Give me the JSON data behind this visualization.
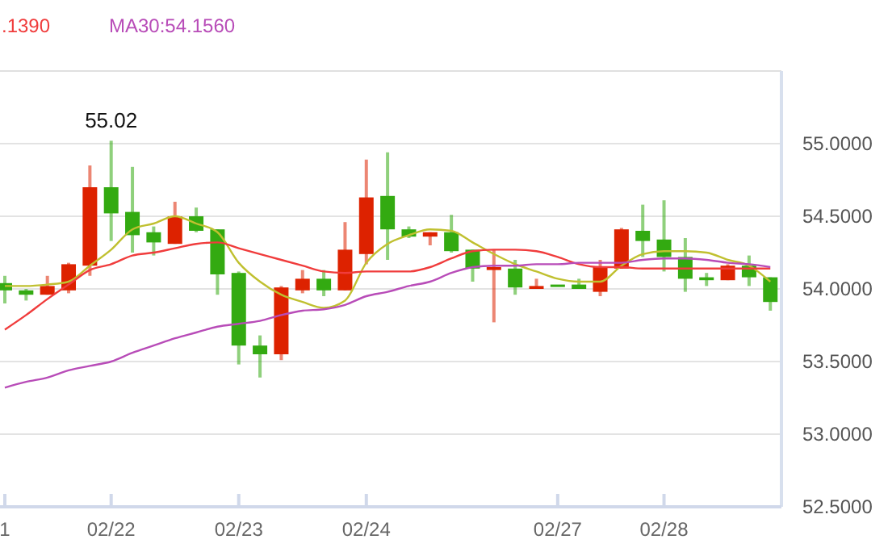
{
  "chart_data": {
    "type": "candlestick",
    "categories": [
      "1",
      null,
      null,
      null,
      null,
      "02/22",
      null,
      null,
      null,
      null,
      null,
      "02/23",
      null,
      null,
      null,
      null,
      null,
      "02/24",
      null,
      null,
      null,
      null,
      null,
      null,
      null,
      null,
      "02/27",
      null,
      null,
      null,
      null,
      "02/28",
      null,
      null,
      null,
      null,
      null
    ],
    "ohlc": [
      [
        54.04,
        54.09,
        53.9,
        53.99
      ],
      [
        53.99,
        54.0,
        53.92,
        53.96
      ],
      [
        53.96,
        54.09,
        53.96,
        54.02
      ],
      [
        53.99,
        54.18,
        53.97,
        54.17
      ],
      [
        54.16,
        54.85,
        54.09,
        54.7
      ],
      [
        54.7,
        55.02,
        54.33,
        54.52
      ],
      [
        54.53,
        54.84,
        54.25,
        54.37
      ],
      [
        54.39,
        54.43,
        54.23,
        54.32
      ],
      [
        54.31,
        54.6,
        54.31,
        54.5
      ],
      [
        54.5,
        54.56,
        54.39,
        54.4
      ],
      [
        54.41,
        54.41,
        53.96,
        54.1
      ],
      [
        54.11,
        54.12,
        53.48,
        53.61
      ],
      [
        53.61,
        53.68,
        53.39,
        53.55
      ],
      [
        53.55,
        54.02,
        53.51,
        54.01
      ],
      [
        53.99,
        54.13,
        53.97,
        54.07
      ],
      [
        54.07,
        54.13,
        53.95,
        53.99
      ],
      [
        53.99,
        54.46,
        53.99,
        54.27
      ],
      [
        54.24,
        54.89,
        54.17,
        54.63
      ],
      [
        54.64,
        54.94,
        54.2,
        54.41
      ],
      [
        54.41,
        54.43,
        54.35,
        54.36
      ],
      [
        54.36,
        54.39,
        54.3,
        54.39
      ],
      [
        54.39,
        54.51,
        54.25,
        54.26
      ],
      [
        54.27,
        54.27,
        54.05,
        54.14
      ],
      [
        54.13,
        54.27,
        53.77,
        54.15
      ],
      [
        54.14,
        54.2,
        53.96,
        54.01
      ],
      [
        54.0,
        54.07,
        54.0,
        54.02
      ],
      [
        54.03,
        54.03,
        54.03,
        54.03
      ],
      [
        54.03,
        54.07,
        54.0,
        54.0
      ],
      [
        53.98,
        54.2,
        53.95,
        54.15
      ],
      [
        54.14,
        54.42,
        54.14,
        54.41
      ],
      [
        54.4,
        54.58,
        54.22,
        54.33
      ],
      [
        54.34,
        54.61,
        54.12,
        54.22
      ],
      [
        54.22,
        54.35,
        53.98,
        54.07
      ],
      [
        54.08,
        54.11,
        54.02,
        54.06
      ],
      [
        54.06,
        54.17,
        54.06,
        54.16
      ],
      [
        54.16,
        54.23,
        54.02,
        54.08
      ],
      [
        54.08,
        54.08,
        53.85,
        53.91
      ]
    ],
    "colors": [
      "#33aa11",
      "#33aa11",
      "#dd2200",
      "#dd2200",
      "#dd2200",
      "#33aa11",
      "#33aa11",
      "#33aa11",
      "#dd2200",
      "#33aa11",
      "#33aa11",
      "#33aa11",
      "#33aa11",
      "#dd2200",
      "#dd2200",
      "#33aa11",
      "#dd2200",
      "#dd2200",
      "#33aa11",
      "#33aa11",
      "#dd2200",
      "#33aa11",
      "#33aa11",
      "#dd2200",
      "#33aa11",
      "#dd2200",
      "#33aa11",
      "#33aa11",
      "#dd2200",
      "#dd2200",
      "#33aa11",
      "#33aa11",
      "#33aa11",
      "#33aa11",
      "#dd2200",
      "#33aa11",
      "#33aa11"
    ],
    "series": [
      {
        "type": "line",
        "color": "#c0c030",
        "values": [
          54.02,
          54.02,
          54.03,
          54.05,
          54.16,
          54.27,
          54.41,
          54.45,
          54.5,
          54.45,
          54.39,
          54.18,
          54.05,
          53.96,
          53.91,
          53.87,
          53.92,
          54.18,
          54.31,
          54.37,
          54.41,
          54.4,
          54.32,
          54.24,
          54.17,
          54.12,
          54.07,
          54.05,
          54.05,
          54.16,
          54.24,
          54.26,
          54.26,
          54.25,
          54.2,
          54.16,
          54.05
        ]
      },
      {
        "type": "line",
        "name": ".1390",
        "color": "#f03c3c",
        "values": [
          53.72,
          53.82,
          53.93,
          54.03,
          54.13,
          54.17,
          54.23,
          54.25,
          54.28,
          54.31,
          54.32,
          54.28,
          54.24,
          54.2,
          54.16,
          54.12,
          54.11,
          54.12,
          54.12,
          54.12,
          54.15,
          54.21,
          54.26,
          54.27,
          54.27,
          54.26,
          54.22,
          54.17,
          54.15,
          54.15,
          54.14,
          54.14,
          54.14,
          54.14,
          54.14,
          54.14,
          54.14
        ]
      },
      {
        "type": "line",
        "name": "MA30:54.1560",
        "color": "#b84cb8",
        "values": [
          53.32,
          53.36,
          53.39,
          53.44,
          53.47,
          53.5,
          53.56,
          53.61,
          53.66,
          53.7,
          53.74,
          53.76,
          53.78,
          53.82,
          53.85,
          53.86,
          53.89,
          53.95,
          53.98,
          54.02,
          54.05,
          54.11,
          54.15,
          54.16,
          54.16,
          54.17,
          54.17,
          54.18,
          54.18,
          54.18,
          54.2,
          54.21,
          54.21,
          54.2,
          54.18,
          54.17,
          54.15
        ]
      }
    ],
    "ylim": [
      52.5,
      55.5
    ],
    "yticks": [
      {
        "value": 52.5,
        "label": "52.5000"
      },
      {
        "value": 53,
        "label": "53.0000"
      },
      {
        "value": 53.5,
        "label": "53.5000"
      },
      {
        "value": 54,
        "label": "54.0000"
      },
      {
        "value": 54.5,
        "label": "54.5000"
      },
      {
        "value": 55,
        "label": "55.0000"
      }
    ],
    "grid": "y",
    "legend": "top left",
    "marker": "none",
    "line_style": "solid",
    "annotations": [
      {
        "text": "55.02",
        "x": "02/22",
        "y": 55.02
      }
    ]
  }
}
